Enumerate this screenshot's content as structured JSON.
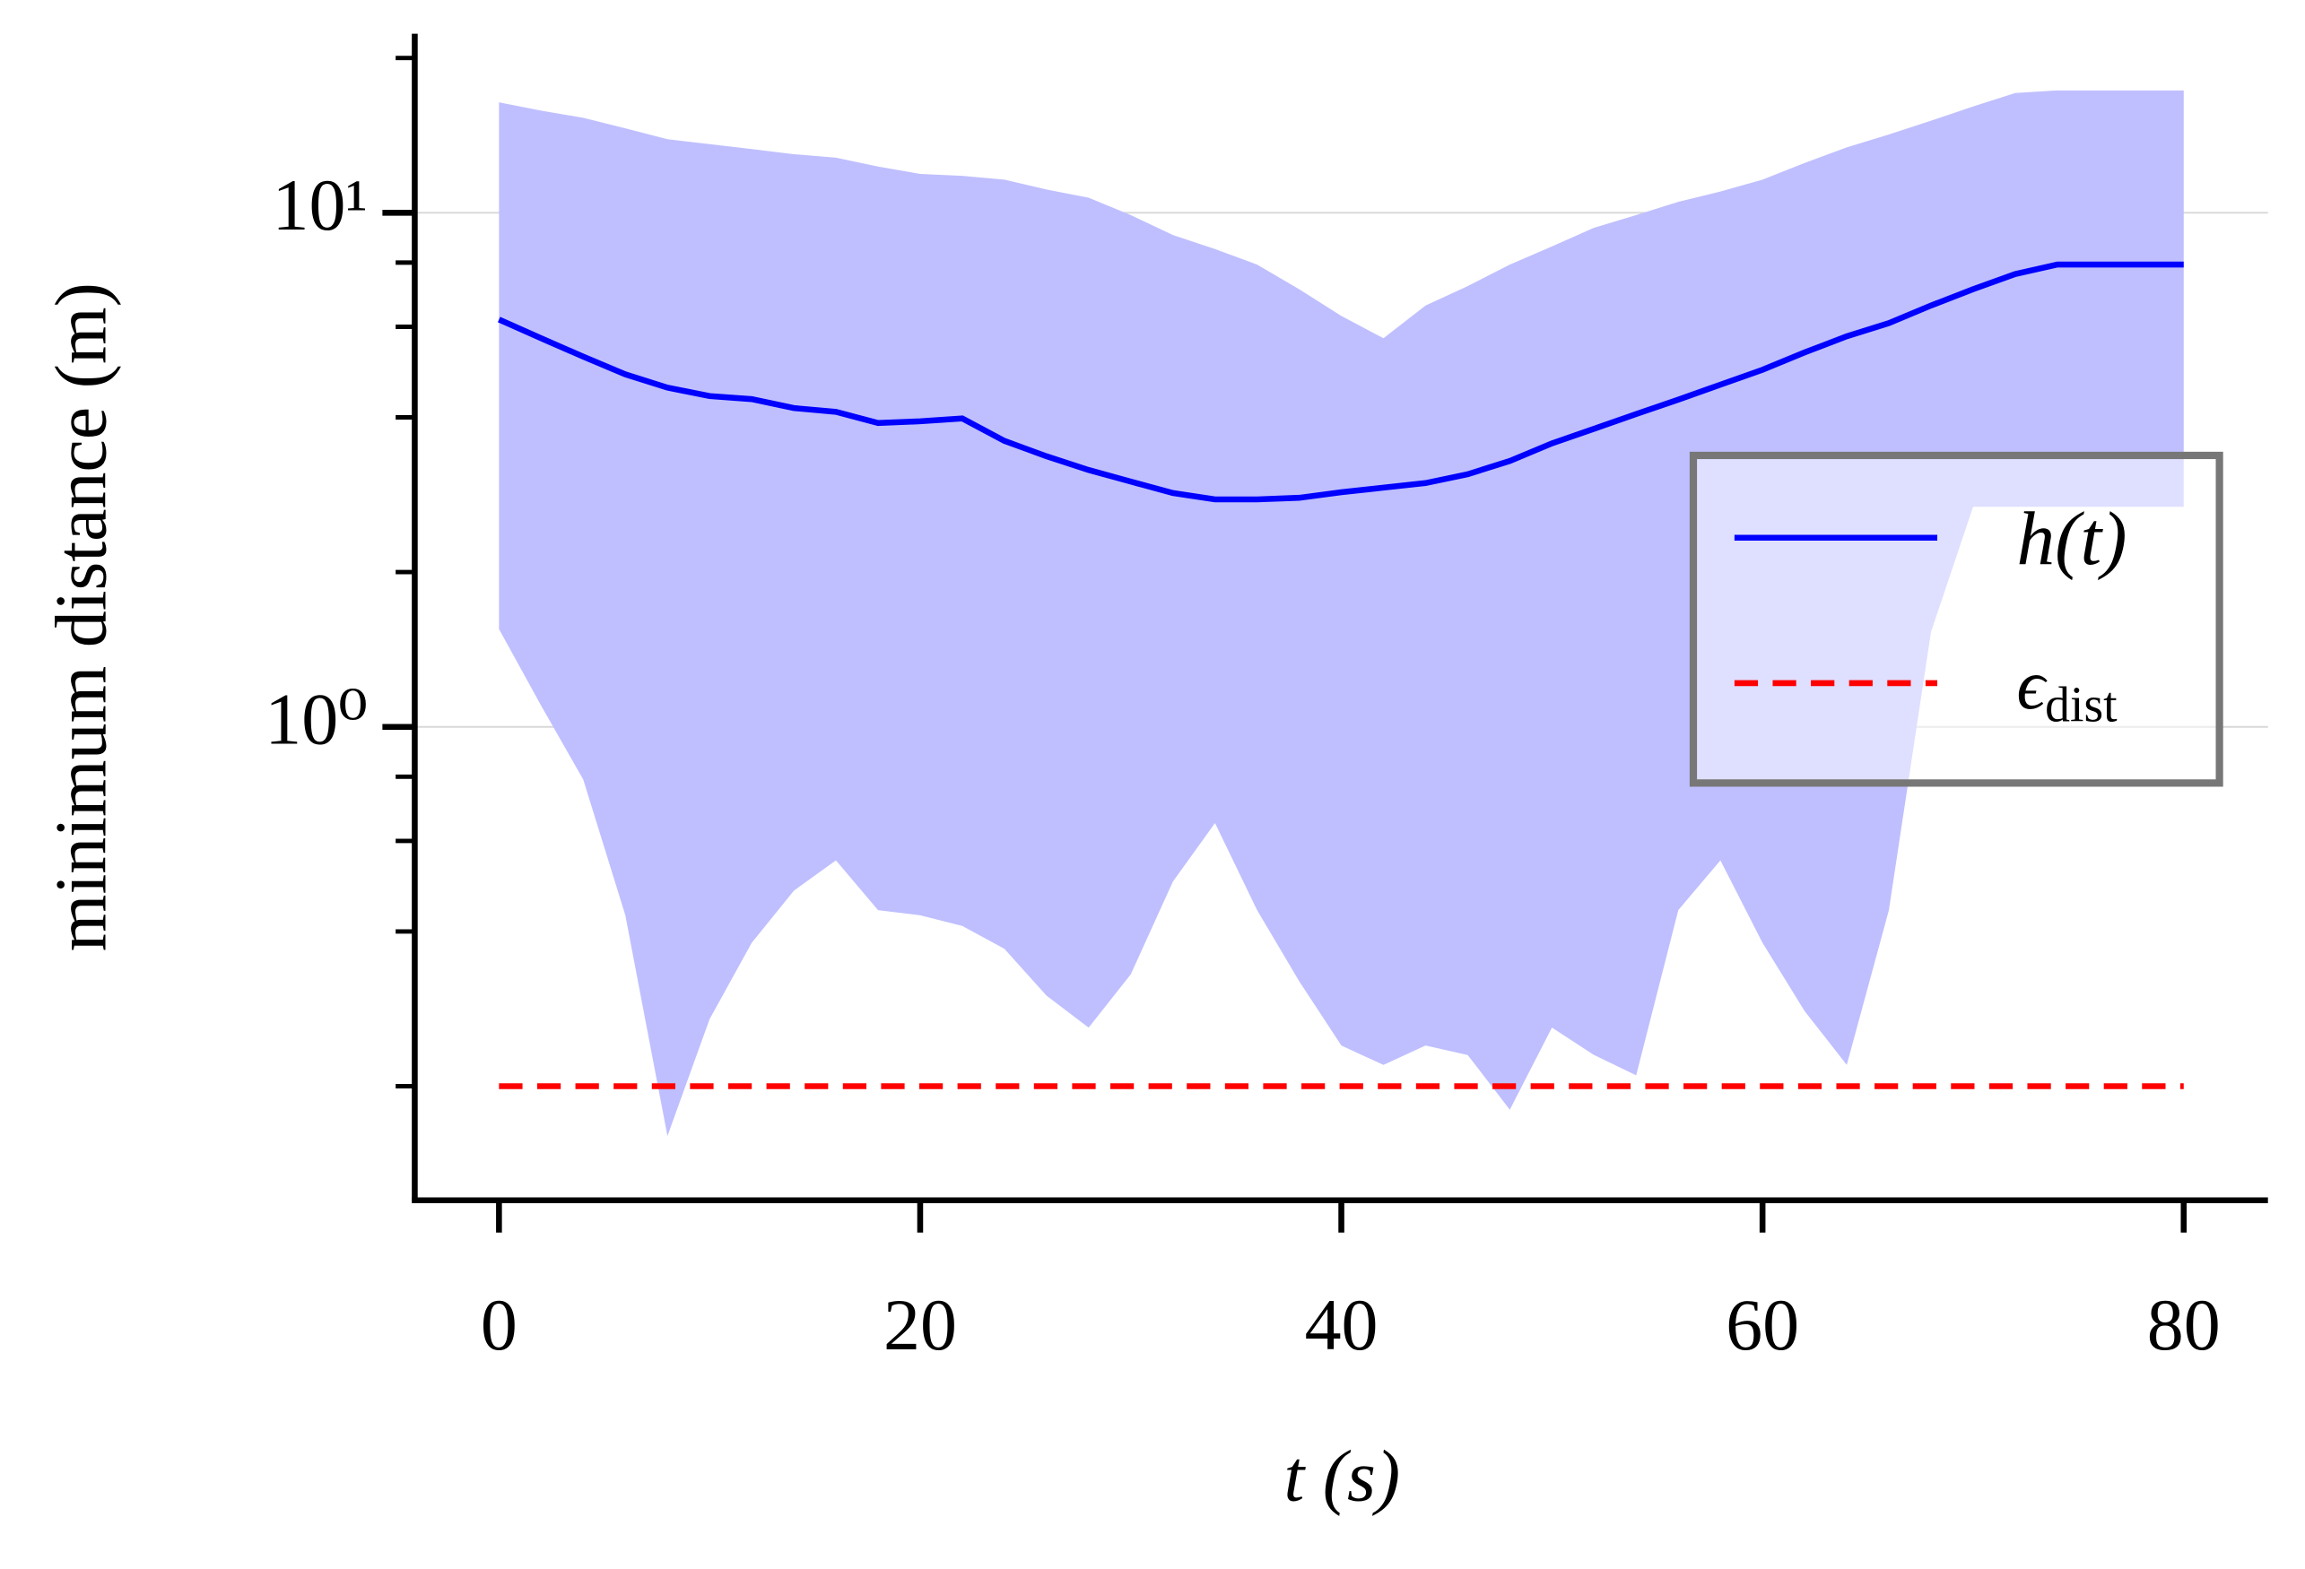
{
  "chart_data": {
    "type": "line",
    "xlabel": "t (s)",
    "ylabel": "minimum distance (m)",
    "x": [
      0,
      2,
      4,
      6,
      8,
      10,
      12,
      14,
      16,
      18,
      20,
      22,
      24,
      26,
      28,
      30,
      32,
      34,
      36,
      38,
      40,
      42,
      44,
      46,
      48,
      50,
      52,
      54,
      56,
      58,
      60,
      62,
      64,
      66,
      68,
      70,
      72,
      74,
      76,
      78,
      80
    ],
    "series": [
      {
        "name": "h(t)",
        "color": "#0000ff",
        "style": "solid",
        "values": [
          6.2,
          5.7,
          5.25,
          4.85,
          4.57,
          4.4,
          4.34,
          4.17,
          4.1,
          3.9,
          3.93,
          3.98,
          3.6,
          3.36,
          3.16,
          3.0,
          2.85,
          2.77,
          2.77,
          2.79,
          2.86,
          2.92,
          2.98,
          3.1,
          3.29,
          3.56,
          3.8,
          4.06,
          4.33,
          4.63,
          4.95,
          5.35,
          5.75,
          6.1,
          6.6,
          7.1,
          7.6,
          7.93,
          7.93,
          7.93,
          7.93
        ]
      },
      {
        "name": "ϵdist",
        "color": "#ff0000",
        "style": "dashed",
        "x": [
          0,
          80
        ],
        "values": [
          0.2,
          0.2
        ]
      }
    ],
    "band": {
      "color": "#bfbfff",
      "upper": [
        16.4,
        15.8,
        15.3,
        14.6,
        13.9,
        13.6,
        13.3,
        13.0,
        12.8,
        12.3,
        11.9,
        11.8,
        11.6,
        11.1,
        10.7,
        9.9,
        9.05,
        8.5,
        7.93,
        7.1,
        6.3,
        5.7,
        6.6,
        7.2,
        7.93,
        8.6,
        9.35,
        9.9,
        10.5,
        11.0,
        11.6,
        12.5,
        13.4,
        14.2,
        15.1,
        16.1,
        17.1,
        17.3,
        17.3,
        17.3,
        17.3
      ],
      "lower": [
        1.55,
        1.1,
        0.79,
        0.43,
        0.16,
        0.27,
        0.38,
        0.48,
        0.55,
        0.44,
        0.43,
        0.41,
        0.37,
        0.3,
        0.26,
        0.33,
        0.5,
        0.65,
        0.44,
        0.32,
        0.24,
        0.22,
        0.24,
        0.23,
        0.18,
        0.26,
        0.23,
        0.21,
        0.44,
        0.55,
        0.38,
        0.28,
        0.22,
        0.44,
        1.53,
        2.68,
        2.68,
        2.68,
        2.68,
        2.68,
        2.68
      ]
    },
    "xlim": [
      -4,
      84
    ],
    "ylim": [
      0.12,
      22
    ],
    "ylog": true,
    "xticks": [
      0,
      20,
      40,
      60,
      80
    ],
    "yticks": [
      {
        "value": 1,
        "label": "10⁰"
      },
      {
        "value": 10,
        "label": "10¹"
      }
    ],
    "yminorticks": [
      0.2,
      0.4,
      0.6,
      0.8,
      2,
      4,
      6,
      8,
      20
    ],
    "grid": true,
    "legend": "right"
  }
}
